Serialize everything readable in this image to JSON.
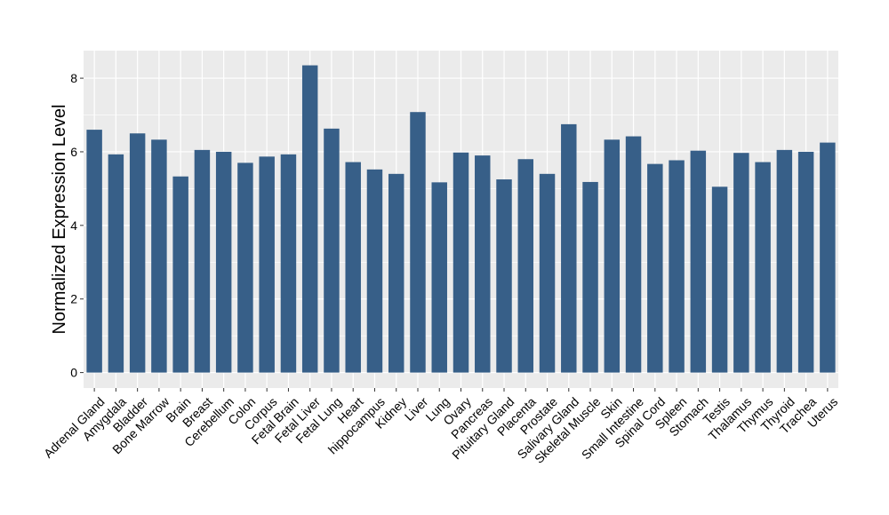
{
  "chart_data": {
    "type": "bar",
    "categories": [
      "Adrenal Gland",
      "Amygdala",
      "Bladder",
      "Bone Marrow",
      "Brain",
      "Breast",
      "Cerebellum",
      "Colon",
      "Corpus",
      "Fetal Brain",
      "Fetal Liver",
      "Fetal Lung",
      "Heart",
      "hippocampus",
      "Kidney",
      "Liver",
      "Lung",
      "Ovary",
      "Pancreas",
      "Pituitary Gland",
      "Placenta",
      "Prostate",
      "Salivary Gland",
      "Skeletal Muscle",
      "Skin",
      "Small Intestine",
      "Spinal Cord",
      "Spleen",
      "Stomach",
      "Testis",
      "Thalamus",
      "Thymus",
      "Thyroid",
      "Trachea",
      "Uterus"
    ],
    "values": [
      6.6,
      5.93,
      6.5,
      6.33,
      5.33,
      6.05,
      6.0,
      5.7,
      5.87,
      5.93,
      8.35,
      6.63,
      5.72,
      5.52,
      5.4,
      7.08,
      5.17,
      5.98,
      5.9,
      5.25,
      5.8,
      5.4,
      6.75,
      5.18,
      6.33,
      6.42,
      5.67,
      5.77,
      6.03,
      5.05,
      5.97,
      5.72,
      6.05,
      6.0,
      6.25
    ],
    "xlabel": "",
    "ylabel": "Normalized Expression Level",
    "yticks": [
      "0",
      "2",
      "4",
      "6",
      "8"
    ],
    "ylim": [
      -0.42,
      8.75
    ],
    "grid": true,
    "bar_color": "#375f88",
    "panel_color": "#ebebeb",
    "grid_color": "#ffffff"
  }
}
